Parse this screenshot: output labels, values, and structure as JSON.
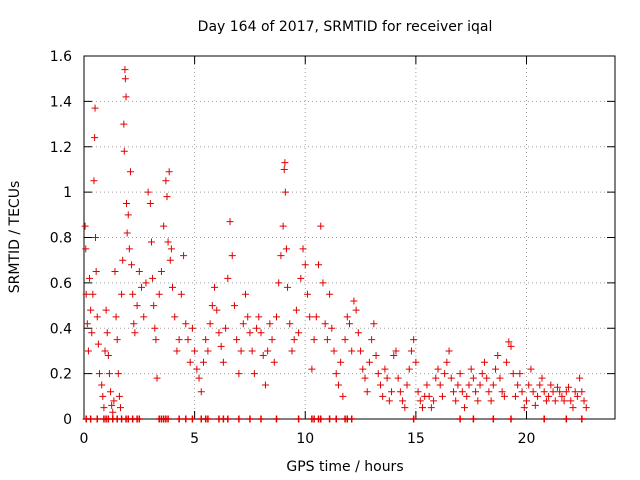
{
  "chart_data": {
    "type": "scatter",
    "title": "Day 164 of 2017, SRMTID for receiver iqal",
    "xlabel": "GPS time / hours",
    "ylabel": "SRMTID / TECUs",
    "xlim": [
      0,
      24
    ],
    "ylim": [
      0,
      1.6
    ],
    "x_ticks": [
      0,
      5,
      10,
      15,
      20
    ],
    "x_tick_labels": [
      "0",
      "5",
      "10",
      "15",
      "20"
    ],
    "y_ticks": [
      0,
      0.2,
      0.4,
      0.6,
      0.8,
      1.0,
      1.2,
      1.4,
      1.6
    ],
    "y_tick_labels": [
      "0",
      "0.2",
      "0.4",
      "0.6",
      "0.8",
      "1",
      "1.2",
      "1.4",
      "1.6"
    ],
    "grid": true,
    "marker": "+",
    "series_color": "#e00000",
    "series": [
      {
        "name": "SRMTID",
        "points": [
          [
            0.05,
            0.85
          ],
          [
            0.08,
            0.75
          ],
          [
            0.1,
            0.55
          ],
          [
            0.15,
            0.42
          ],
          [
            0.2,
            0.3
          ],
          [
            0.25,
            0.62
          ],
          [
            0.3,
            0.48
          ],
          [
            0.35,
            0.38
          ],
          [
            0.4,
            0.55
          ],
          [
            0.45,
            1.05
          ],
          [
            0.48,
            1.24
          ],
          [
            0.5,
            1.37
          ],
          [
            0.52,
            0.8
          ],
          [
            0.55,
            0.65
          ],
          [
            0.6,
            0.45
          ],
          [
            0.65,
            0.33
          ],
          [
            0.7,
            0.2
          ],
          [
            0.8,
            0.15
          ],
          [
            0.85,
            0.1
          ],
          [
            0.9,
            0.05
          ],
          [
            0.95,
            0.3
          ],
          [
            1.0,
            0.48
          ],
          [
            1.05,
            0.38
          ],
          [
            1.1,
            0.28
          ],
          [
            1.15,
            0.2
          ],
          [
            1.2,
            0.12
          ],
          [
            1.25,
            0.06
          ],
          [
            1.3,
            0.03
          ],
          [
            1.35,
            0.08
          ],
          [
            1.4,
            0.65
          ],
          [
            1.45,
            0.45
          ],
          [
            1.5,
            0.35
          ],
          [
            1.55,
            0.2
          ],
          [
            1.6,
            0.1
          ],
          [
            1.65,
            0.05
          ],
          [
            1.7,
            0.55
          ],
          [
            1.75,
            0.7
          ],
          [
            1.8,
            1.3
          ],
          [
            1.82,
            1.18
          ],
          [
            1.85,
            1.54
          ],
          [
            1.87,
            1.5
          ],
          [
            1.9,
            1.42
          ],
          [
            1.92,
            0.95
          ],
          [
            1.95,
            0.82
          ],
          [
            2.0,
            0.9
          ],
          [
            2.05,
            0.75
          ],
          [
            2.1,
            1.09
          ],
          [
            2.15,
            0.68
          ],
          [
            2.2,
            0.55
          ],
          [
            2.25,
            0.42
          ],
          [
            2.3,
            0.38
          ],
          [
            2.4,
            0.5
          ],
          [
            2.5,
            0.65
          ],
          [
            2.6,
            0.58
          ],
          [
            2.7,
            0.45
          ],
          [
            2.8,
            0.6
          ],
          [
            2.9,
            1.0
          ],
          [
            3.0,
            0.95
          ],
          [
            3.05,
            0.78
          ],
          [
            3.1,
            0.62
          ],
          [
            3.15,
            0.5
          ],
          [
            3.2,
            0.4
          ],
          [
            3.25,
            0.35
          ],
          [
            3.3,
            0.18
          ],
          [
            3.4,
            0.55
          ],
          [
            3.5,
            0.65
          ],
          [
            3.6,
            0.85
          ],
          [
            3.7,
            1.05
          ],
          [
            3.75,
            0.98
          ],
          [
            3.8,
            0.78
          ],
          [
            3.85,
            1.09
          ],
          [
            3.9,
            0.7
          ],
          [
            3.95,
            0.75
          ],
          [
            4.0,
            0.58
          ],
          [
            4.1,
            0.45
          ],
          [
            4.2,
            0.3
          ],
          [
            4.3,
            0.35
          ],
          [
            4.4,
            0.55
          ],
          [
            4.5,
            0.72
          ],
          [
            4.6,
            0.42
          ],
          [
            4.7,
            0.35
          ],
          [
            4.8,
            0.25
          ],
          [
            4.9,
            0.4
          ],
          [
            5.0,
            0.3
          ],
          [
            5.1,
            0.22
          ],
          [
            5.2,
            0.18
          ],
          [
            5.3,
            0.12
          ],
          [
            5.4,
            0.25
          ],
          [
            5.5,
            0.35
          ],
          [
            5.6,
            0.3
          ],
          [
            5.7,
            0.42
          ],
          [
            5.8,
            0.5
          ],
          [
            5.9,
            0.58
          ],
          [
            6.0,
            0.48
          ],
          [
            6.1,
            0.38
          ],
          [
            6.2,
            0.32
          ],
          [
            6.3,
            0.25
          ],
          [
            6.4,
            0.4
          ],
          [
            6.5,
            0.62
          ],
          [
            6.6,
            0.87
          ],
          [
            6.7,
            0.72
          ],
          [
            6.8,
            0.5
          ],
          [
            6.9,
            0.35
          ],
          [
            7.0,
            0.2
          ],
          [
            7.1,
            0.3
          ],
          [
            7.2,
            0.42
          ],
          [
            7.3,
            0.55
          ],
          [
            7.4,
            0.45
          ],
          [
            7.5,
            0.38
          ],
          [
            7.6,
            0.3
          ],
          [
            7.7,
            0.2
          ],
          [
            7.8,
            0.4
          ],
          [
            7.9,
            0.45
          ],
          [
            8.0,
            0.38
          ],
          [
            8.1,
            0.28
          ],
          [
            8.2,
            0.15
          ],
          [
            8.3,
            0.3
          ],
          [
            8.4,
            0.42
          ],
          [
            8.5,
            0.35
          ],
          [
            8.6,
            0.25
          ],
          [
            8.7,
            0.45
          ],
          [
            8.8,
            0.6
          ],
          [
            8.9,
            0.72
          ],
          [
            9.0,
            0.85
          ],
          [
            9.05,
            1.1
          ],
          [
            9.08,
            1.13
          ],
          [
            9.1,
            1.0
          ],
          [
            9.15,
            0.75
          ],
          [
            9.2,
            0.58
          ],
          [
            9.3,
            0.42
          ],
          [
            9.4,
            0.3
          ],
          [
            9.5,
            0.35
          ],
          [
            9.6,
            0.48
          ],
          [
            9.7,
            0.38
          ],
          [
            9.8,
            0.62
          ],
          [
            9.9,
            0.75
          ],
          [
            10.0,
            0.68
          ],
          [
            10.1,
            0.55
          ],
          [
            10.2,
            0.45
          ],
          [
            10.3,
            0.22
          ],
          [
            10.4,
            0.35
          ],
          [
            10.5,
            0.45
          ],
          [
            10.6,
            0.68
          ],
          [
            10.7,
            0.85
          ],
          [
            10.8,
            0.6
          ],
          [
            10.9,
            0.42
          ],
          [
            11.0,
            0.35
          ],
          [
            11.1,
            0.55
          ],
          [
            11.2,
            0.4
          ],
          [
            11.3,
            0.3
          ],
          [
            11.4,
            0.2
          ],
          [
            11.5,
            0.15
          ],
          [
            11.6,
            0.25
          ],
          [
            11.7,
            0.1
          ],
          [
            11.8,
            0.35
          ],
          [
            11.9,
            0.45
          ],
          [
            12.0,
            0.42
          ],
          [
            12.1,
            0.3
          ],
          [
            12.2,
            0.52
          ],
          [
            12.3,
            0.48
          ],
          [
            12.4,
            0.38
          ],
          [
            12.5,
            0.3
          ],
          [
            12.6,
            0.22
          ],
          [
            12.7,
            0.18
          ],
          [
            12.8,
            0.12
          ],
          [
            12.9,
            0.25
          ],
          [
            13.0,
            0.35
          ],
          [
            13.1,
            0.42
          ],
          [
            13.2,
            0.28
          ],
          [
            13.3,
            0.2
          ],
          [
            13.4,
            0.15
          ],
          [
            13.5,
            0.1
          ],
          [
            13.6,
            0.22
          ],
          [
            13.7,
            0.18
          ],
          [
            13.8,
            0.08
          ],
          [
            13.9,
            0.12
          ],
          [
            14.0,
            0.28
          ],
          [
            14.1,
            0.3
          ],
          [
            14.2,
            0.18
          ],
          [
            14.3,
            0.12
          ],
          [
            14.4,
            0.08
          ],
          [
            14.5,
            0.05
          ],
          [
            14.6,
            0.15
          ],
          [
            14.7,
            0.22
          ],
          [
            14.8,
            0.3
          ],
          [
            14.9,
            0.35
          ],
          [
            15.0,
            0.25
          ],
          [
            15.1,
            0.12
          ],
          [
            15.2,
            0.08
          ],
          [
            15.3,
            0.05
          ],
          [
            15.4,
            0.1
          ],
          [
            15.5,
            0.15
          ],
          [
            15.6,
            0.1
          ],
          [
            15.7,
            0.05
          ],
          [
            15.8,
            0.08
          ],
          [
            15.9,
            0.18
          ],
          [
            16.0,
            0.22
          ],
          [
            16.1,
            0.15
          ],
          [
            16.2,
            0.1
          ],
          [
            16.3,
            0.2
          ],
          [
            16.4,
            0.25
          ],
          [
            16.5,
            0.3
          ],
          [
            16.6,
            0.18
          ],
          [
            16.7,
            0.12
          ],
          [
            16.8,
            0.08
          ],
          [
            16.9,
            0.15
          ],
          [
            17.0,
            0.2
          ],
          [
            17.1,
            0.12
          ],
          [
            17.2,
            0.05
          ],
          [
            17.3,
            0.1
          ],
          [
            17.4,
            0.15
          ],
          [
            17.5,
            0.22
          ],
          [
            17.6,
            0.18
          ],
          [
            17.7,
            0.12
          ],
          [
            17.8,
            0.08
          ],
          [
            17.9,
            0.15
          ],
          [
            18.0,
            0.2
          ],
          [
            18.1,
            0.25
          ],
          [
            18.2,
            0.18
          ],
          [
            18.3,
            0.12
          ],
          [
            18.4,
            0.08
          ],
          [
            18.5,
            0.15
          ],
          [
            18.6,
            0.22
          ],
          [
            18.7,
            0.28
          ],
          [
            18.8,
            0.18
          ],
          [
            18.9,
            0.12
          ],
          [
            19.0,
            0.1
          ],
          [
            19.1,
            0.25
          ],
          [
            19.2,
            0.34
          ],
          [
            19.3,
            0.32
          ],
          [
            19.4,
            0.2
          ],
          [
            19.5,
            0.1
          ],
          [
            19.6,
            0.15
          ],
          [
            19.7,
            0.2
          ],
          [
            19.8,
            0.12
          ],
          [
            19.9,
            0.05
          ],
          [
            20.0,
            0.08
          ],
          [
            20.1,
            0.15
          ],
          [
            20.2,
            0.22
          ],
          [
            20.3,
            0.12
          ],
          [
            20.4,
            0.06
          ],
          [
            20.5,
            0.1
          ],
          [
            20.6,
            0.15
          ],
          [
            20.7,
            0.18
          ],
          [
            20.8,
            0.12
          ],
          [
            20.9,
            0.08
          ],
          [
            21.0,
            0.1
          ],
          [
            21.1,
            0.15
          ],
          [
            21.2,
            0.12
          ],
          [
            21.3,
            0.08
          ],
          [
            21.4,
            0.14
          ],
          [
            21.5,
            0.12
          ],
          [
            21.6,
            0.1
          ],
          [
            21.7,
            0.08
          ],
          [
            21.8,
            0.12
          ],
          [
            21.9,
            0.14
          ],
          [
            22.0,
            0.08
          ],
          [
            22.1,
            0.05
          ],
          [
            22.2,
            0.12
          ],
          [
            22.3,
            0.1
          ],
          [
            22.4,
            0.18
          ],
          [
            22.5,
            0.12
          ],
          [
            22.6,
            0.08
          ],
          [
            22.7,
            0.05
          ]
        ],
        "baseline_x": [
          0.1,
          0.3,
          0.6,
          0.9,
          1.0,
          1.1,
          1.3,
          1.5,
          1.7,
          1.9,
          2.0,
          2.2,
          2.4,
          2.5,
          3.4,
          3.5,
          3.6,
          3.7,
          3.8,
          4.3,
          4.6,
          4.9,
          5.3,
          5.5,
          5.6,
          6.1,
          6.3,
          6.5,
          7.0,
          7.5,
          8.0,
          8.7,
          9.7,
          10.3,
          10.4,
          10.6,
          10.7,
          11.1,
          11.4,
          11.8,
          11.9,
          12.1,
          14.9,
          17.0,
          17.6,
          18.5,
          19.3,
          20.8,
          21.8,
          22.5
        ]
      }
    ]
  }
}
